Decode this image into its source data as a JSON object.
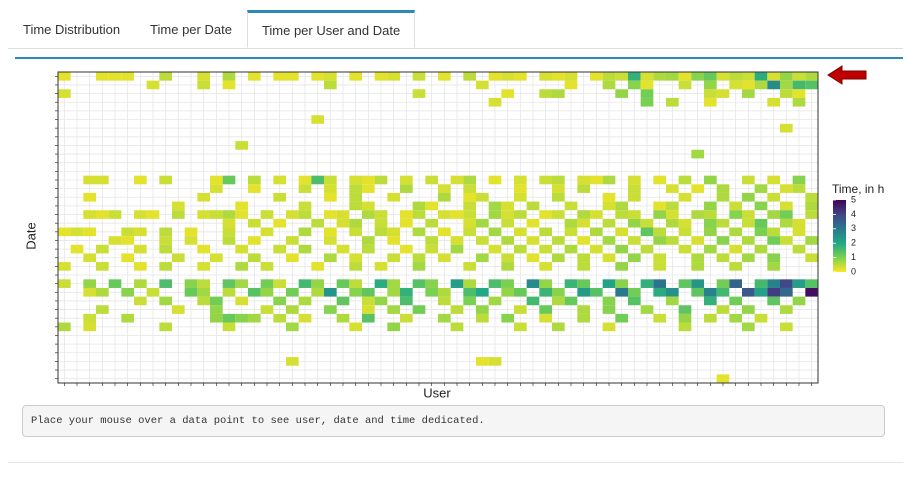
{
  "tabs": [
    "Time Distribution",
    "Time per Date",
    "Time per User and Date"
  ],
  "active_tab": 2,
  "chart_data": {
    "type": "heatmap",
    "xlabel": "User",
    "ylabel": "Date",
    "legend_title": "Time, in h",
    "colorscale": [
      "#fde725",
      "#7ad151",
      "#22a884",
      "#2a788e",
      "#414487",
      "#440154"
    ],
    "zlim": [
      0,
      5
    ],
    "zticks": [
      0,
      1,
      2,
      3,
      4,
      5
    ],
    "xlim": [
      0.5,
      60.5
    ],
    "ylim": [
      36.5,
      0.5
    ],
    "grid": true,
    "xticks": [
      1,
      2,
      3,
      4,
      5,
      6,
      7,
      8,
      9,
      10,
      11,
      12,
      13,
      14,
      15,
      16,
      17,
      18,
      19,
      20,
      21,
      22,
      23,
      24,
      25,
      26,
      27,
      28,
      29,
      30,
      31,
      32,
      33,
      34,
      35,
      36,
      37,
      38,
      39,
      40,
      41,
      42,
      43,
      44,
      45,
      46,
      47,
      48,
      49,
      50,
      51,
      52,
      53,
      54,
      55,
      56,
      57,
      58,
      59,
      60
    ],
    "yticks": [
      1,
      2,
      3,
      4,
      5,
      6,
      7,
      8,
      9,
      10,
      11,
      12,
      13,
      14,
      15,
      16,
      17,
      18,
      19,
      20,
      21,
      22,
      23,
      24,
      25,
      26,
      27,
      28,
      29,
      30,
      31,
      32,
      33,
      34,
      35,
      36
    ],
    "rows": [
      {
        "y": 1,
        "x": [
          1,
          4,
          5,
          6,
          9,
          12,
          14,
          16,
          18,
          19,
          21,
          22,
          24,
          26,
          27,
          29,
          31,
          33,
          35,
          36,
          37,
          39,
          40,
          41,
          43,
          44,
          45,
          46,
          47,
          48,
          49,
          50,
          51,
          52,
          53,
          54,
          55,
          56,
          57,
          58,
          59,
          60
        ],
        "values": [
          0.2,
          0.2,
          0.2,
          0.2,
          0.5,
          0.3,
          0.6,
          0.2,
          0.2,
          0.2,
          0.2,
          0.3,
          0.2,
          0.2,
          0.3,
          0.4,
          0.2,
          0.5,
          0.2,
          0.3,
          0.2,
          0.3,
          0.2,
          0.3,
          0.2,
          0.5,
          0.4,
          1.8,
          0.3,
          0.6,
          0.7,
          0.2,
          0.9,
          1.2,
          0.3,
          0.5,
          0.4,
          1.9,
          0.3,
          0.8,
          0.4,
          0.6
        ]
      },
      {
        "y": 2,
        "x": [
          8,
          12,
          14,
          22,
          34,
          41,
          44,
          46,
          47,
          50,
          52,
          54,
          55,
          56,
          57,
          58,
          59,
          60
        ],
        "values": [
          0.3,
          0.4,
          0.2,
          0.5,
          0.3,
          0.2,
          0.6,
          0.9,
          0.2,
          0.4,
          0.8,
          0.3,
          0.2,
          0.6,
          2.6,
          0.7,
          1.6,
          1.4
        ]
      },
      {
        "y": 3,
        "x": [
          1,
          29,
          36,
          39,
          40,
          45,
          47,
          52,
          53,
          55,
          58,
          59
        ],
        "values": [
          0.3,
          0.4,
          0.2,
          0.5,
          0.6,
          0.8,
          1.1,
          0.4,
          0.3,
          0.7,
          0.5,
          0.2
        ]
      },
      {
        "y": 4,
        "x": [
          35,
          47,
          49,
          52,
          57,
          59
        ],
        "values": [
          0.3,
          1.0,
          0.5,
          0.2,
          0.3,
          0.6
        ]
      },
      {
        "y": 6,
        "x": [
          21
        ],
        "values": [
          0.3
        ]
      },
      {
        "y": 7,
        "x": [
          58
        ],
        "values": [
          0.3
        ]
      },
      {
        "y": 9,
        "x": [
          15
        ],
        "values": [
          0.4
        ]
      },
      {
        "y": 10,
        "x": [
          51
        ],
        "values": [
          0.7
        ]
      },
      {
        "y": 13,
        "x": [
          3,
          4,
          7,
          9,
          13,
          14,
          16,
          18,
          20,
          21,
          22,
          24,
          25,
          26,
          28,
          30,
          32,
          33,
          35,
          37,
          39,
          40,
          42,
          43,
          44,
          46,
          48,
          50,
          52,
          55,
          57,
          59
        ],
        "values": [
          0.3,
          0.3,
          0.2,
          0.4,
          0.2,
          1.2,
          0.5,
          0.3,
          0.2,
          1.5,
          0.4,
          0.3,
          0.2,
          0.5,
          0.3,
          0.4,
          0.3,
          0.6,
          0.2,
          0.3,
          0.4,
          0.5,
          0.3,
          0.2,
          0.6,
          0.3,
          0.2,
          0.5,
          0.8,
          0.4,
          0.3,
          0.9
        ]
      },
      {
        "y": 14,
        "x": [
          13,
          16,
          20,
          22,
          24,
          25,
          28,
          31,
          33,
          37,
          40,
          42,
          46,
          49,
          51,
          53,
          56,
          58,
          59
        ],
        "values": [
          0.3,
          0.2,
          0.4,
          0.3,
          0.5,
          0.2,
          0.6,
          0.3,
          0.4,
          0.2,
          0.3,
          0.5,
          0.4,
          0.3,
          0.2,
          0.6,
          0.7,
          0.3,
          0.5
        ]
      },
      {
        "y": 15,
        "x": [
          3,
          12,
          18,
          22,
          24,
          27,
          31,
          33,
          34,
          37,
          40,
          44,
          46,
          50,
          53,
          55,
          57,
          60
        ],
        "values": [
          0.2,
          0.3,
          0.4,
          0.2,
          0.5,
          0.3,
          0.6,
          0.2,
          0.4,
          0.3,
          0.5,
          0.2,
          0.4,
          0.3,
          0.6,
          0.8,
          0.4,
          0.5
        ]
      },
      {
        "y": 16,
        "x": [
          10,
          15,
          20,
          24,
          25,
          29,
          30,
          33,
          35,
          36,
          38,
          41,
          44,
          45,
          48,
          49,
          52,
          54,
          56,
          58,
          60
        ],
        "values": [
          0.3,
          0.2,
          0.4,
          0.5,
          0.3,
          0.6,
          0.2,
          0.4,
          0.7,
          0.3,
          0.5,
          0.4,
          0.3,
          0.6,
          0.2,
          0.5,
          0.8,
          0.4,
          0.9,
          0.3,
          0.6
        ]
      },
      {
        "y": 17,
        "x": [
          3,
          4,
          5,
          7,
          8,
          10,
          12,
          13,
          14,
          15,
          17,
          19,
          20,
          22,
          23,
          25,
          26,
          28,
          29,
          31,
          32,
          33,
          35,
          36,
          37,
          39,
          40,
          42,
          43,
          45,
          46,
          48,
          49,
          51,
          52,
          54,
          55,
          57,
          58,
          60
        ],
        "values": [
          0.3,
          0.2,
          0.4,
          0.3,
          0.2,
          0.5,
          0.3,
          0.4,
          0.6,
          0.2,
          0.4,
          0.3,
          0.5,
          0.2,
          0.3,
          0.6,
          0.4,
          0.2,
          0.5,
          0.3,
          0.2,
          0.4,
          0.7,
          0.3,
          0.5,
          0.2,
          0.4,
          0.6,
          0.3,
          0.5,
          0.4,
          0.8,
          0.3,
          0.6,
          0.5,
          0.9,
          0.4,
          0.7,
          1.1,
          0.5
        ]
      },
      {
        "y": 18,
        "x": [
          14,
          16,
          18,
          21,
          23,
          24,
          26,
          28,
          30,
          33,
          34,
          36,
          38,
          41,
          42,
          44,
          46,
          47,
          49,
          50,
          52,
          53,
          55,
          56,
          58,
          59
        ],
        "values": [
          0.3,
          0.4,
          0.2,
          0.5,
          0.3,
          0.6,
          0.4,
          0.2,
          0.5,
          0.3,
          0.7,
          0.4,
          0.2,
          0.6,
          0.3,
          0.5,
          0.8,
          0.4,
          0.6,
          0.3,
          0.9,
          0.5,
          0.4,
          1.2,
          0.6,
          0.3
        ]
      },
      {
        "y": 19,
        "x": [
          1,
          2,
          3,
          6,
          7,
          9,
          11,
          14,
          17,
          20,
          22,
          24,
          26,
          27,
          29,
          31,
          33,
          35,
          37,
          39,
          41,
          43,
          45,
          47,
          48,
          50,
          52,
          54,
          56,
          57,
          59
        ],
        "values": [
          0.2,
          0.3,
          0.2,
          0.4,
          0.3,
          0.5,
          0.2,
          0.4,
          0.3,
          0.6,
          0.2,
          0.4,
          0.5,
          0.3,
          0.6,
          0.2,
          0.4,
          0.7,
          0.3,
          0.5,
          0.4,
          0.6,
          0.3,
          1.3,
          0.5,
          0.4,
          0.8,
          0.6,
          1.0,
          0.5,
          0.3
        ]
      },
      {
        "y": 20,
        "x": [
          5,
          6,
          9,
          11,
          14,
          16,
          19,
          22,
          25,
          27,
          30,
          32,
          34,
          36,
          38,
          40,
          42,
          44,
          46,
          48,
          49,
          51,
          53,
          55,
          57,
          58,
          60
        ],
        "values": [
          0.3,
          0.2,
          0.4,
          0.3,
          0.5,
          0.2,
          0.4,
          0.3,
          0.6,
          0.2,
          0.5,
          0.3,
          0.4,
          0.6,
          0.3,
          0.5,
          0.2,
          0.7,
          0.4,
          0.8,
          0.5,
          0.3,
          0.9,
          0.6,
          1.1,
          0.4,
          0.7
        ]
      },
      {
        "y": 21,
        "x": [
          2,
          4,
          7,
          9,
          12,
          15,
          18,
          20,
          23,
          25,
          28,
          30,
          32,
          35,
          37,
          39,
          41,
          43,
          45,
          47,
          50,
          52,
          54,
          56,
          59
        ],
        "values": [
          0.2,
          0.4,
          0.3,
          0.5,
          0.2,
          0.3,
          0.4,
          0.6,
          0.3,
          0.5,
          0.2,
          0.4,
          0.7,
          0.3,
          0.5,
          0.4,
          0.6,
          0.3,
          0.8,
          0.5,
          0.4,
          0.7,
          0.3,
          0.6,
          0.5
        ]
      },
      {
        "y": 22,
        "x": [
          3,
          6,
          10,
          13,
          16,
          19,
          22,
          24,
          27,
          29,
          31,
          34,
          36,
          38,
          40,
          42,
          44,
          46,
          48,
          51,
          53,
          55,
          57,
          60
        ],
        "values": [
          0.3,
          0.2,
          0.4,
          0.3,
          0.5,
          0.2,
          0.6,
          0.3,
          0.4,
          0.5,
          0.3,
          0.7,
          0.4,
          0.2,
          0.6,
          0.5,
          0.3,
          0.8,
          0.4,
          0.6,
          0.5,
          0.7,
          0.9,
          0.4
        ]
      },
      {
        "y": 23,
        "x": [
          1,
          4,
          7,
          9,
          12,
          15,
          17,
          21,
          24,
          26,
          29,
          33,
          36,
          39,
          42,
          45,
          48,
          51,
          54,
          57
        ],
        "values": [
          0.3,
          0.4,
          0.2,
          0.5,
          0.3,
          0.6,
          0.4,
          0.2,
          0.5,
          0.3,
          0.7,
          0.4,
          0.6,
          0.3,
          0.5,
          0.8,
          0.4,
          0.6,
          0.5,
          0.7
        ]
      },
      {
        "y": 25,
        "x": [
          1,
          3,
          5,
          7,
          9,
          11,
          12,
          14,
          15,
          17,
          18,
          20,
          21,
          23,
          24,
          26,
          27,
          29,
          30,
          32,
          33,
          35,
          36,
          38,
          39,
          41,
          42,
          44,
          45,
          47,
          48,
          50,
          51,
          53,
          54,
          56,
          57,
          58,
          59,
          60
        ],
        "values": [
          0.4,
          0.8,
          1.2,
          0.6,
          1.5,
          0.9,
          0.5,
          1.3,
          0.7,
          1.1,
          0.4,
          1.6,
          0.8,
          1.2,
          0.5,
          1.9,
          0.7,
          1.4,
          0.9,
          2.2,
          0.6,
          1.5,
          1.0,
          2.6,
          0.8,
          1.7,
          1.2,
          2.1,
          0.9,
          1.8,
          3.1,
          1.3,
          2.4,
          1.1,
          3.4,
          1.6,
          2.8,
          3.9,
          2.2,
          1.4
        ]
      },
      {
        "y": 26,
        "x": [
          3,
          4,
          6,
          8,
          11,
          12,
          14,
          16,
          17,
          19,
          21,
          22,
          24,
          25,
          27,
          28,
          30,
          31,
          33,
          34,
          36,
          37,
          39,
          40,
          42,
          43,
          45,
          46,
          48,
          49,
          51,
          52,
          53,
          55,
          56,
          57,
          58,
          60
        ],
        "values": [
          0.3,
          0.6,
          0.9,
          0.4,
          1.2,
          0.7,
          0.5,
          1.4,
          0.8,
          1.1,
          0.6,
          2.4,
          0.9,
          1.3,
          0.7,
          1.8,
          1.0,
          0.6,
          1.5,
          2.0,
          0.8,
          1.2,
          1.7,
          0.9,
          2.3,
          1.4,
          3.0,
          1.1,
          1.9,
          2.5,
          1.3,
          2.8,
          1.6,
          3.6,
          2.1,
          4.1,
          3.3,
          4.8
        ]
      },
      {
        "y": 27,
        "x": [
          7,
          9,
          12,
          13,
          15,
          18,
          20,
          23,
          25,
          26,
          28,
          31,
          33,
          35,
          38,
          40,
          41,
          44,
          46,
          49,
          52,
          54,
          57,
          59
        ],
        "values": [
          0.4,
          0.7,
          0.5,
          1.1,
          0.3,
          0.9,
          0.6,
          1.3,
          0.4,
          0.8,
          1.5,
          0.5,
          1.0,
          0.7,
          1.6,
          0.6,
          1.2,
          0.9,
          1.4,
          0.7,
          1.8,
          1.1,
          1.3,
          0.8
        ]
      },
      {
        "y": 28,
        "x": [
          4,
          10,
          13,
          17,
          19,
          22,
          25,
          27,
          29,
          32,
          34,
          37,
          39,
          42,
          44,
          47,
          50,
          53,
          55,
          58
        ],
        "values": [
          0.5,
          0.3,
          0.8,
          0.4,
          0.6,
          0.9,
          0.3,
          0.7,
          1.1,
          0.5,
          0.8,
          0.4,
          1.2,
          0.6,
          0.9,
          0.7,
          1.3,
          0.5,
          0.8,
          0.6
        ]
      },
      {
        "y": 29,
        "x": [
          3,
          6,
          13,
          14,
          15,
          16,
          18,
          20,
          23,
          25,
          28,
          31,
          34,
          36,
          39,
          42,
          45,
          48,
          50,
          52,
          54,
          56
        ],
        "values": [
          0.4,
          0.6,
          0.8,
          1.2,
          0.9,
          0.7,
          0.5,
          0.3,
          0.6,
          1.4,
          0.4,
          0.7,
          0.5,
          0.9,
          0.3,
          0.6,
          1.1,
          0.4,
          0.8,
          0.5,
          0.7,
          0.4
        ]
      },
      {
        "y": 30,
        "x": [
          1,
          3,
          9,
          14,
          19,
          24,
          27,
          32,
          37,
          40,
          44,
          50,
          55,
          58
        ],
        "values": [
          0.6,
          0.3,
          0.5,
          0.4,
          0.7,
          0.3,
          0.8,
          0.5,
          0.4,
          0.6,
          0.3,
          0.5,
          0.7,
          0.4
        ]
      },
      {
        "y": 34,
        "x": [
          19,
          34,
          35
        ],
        "values": [
          0.3,
          0.2,
          0.3
        ]
      },
      {
        "y": 36,
        "x": [
          53
        ],
        "values": [
          0.2
        ]
      }
    ]
  },
  "hint": "Place your mouse over a data point to see user, date and time dedicated."
}
